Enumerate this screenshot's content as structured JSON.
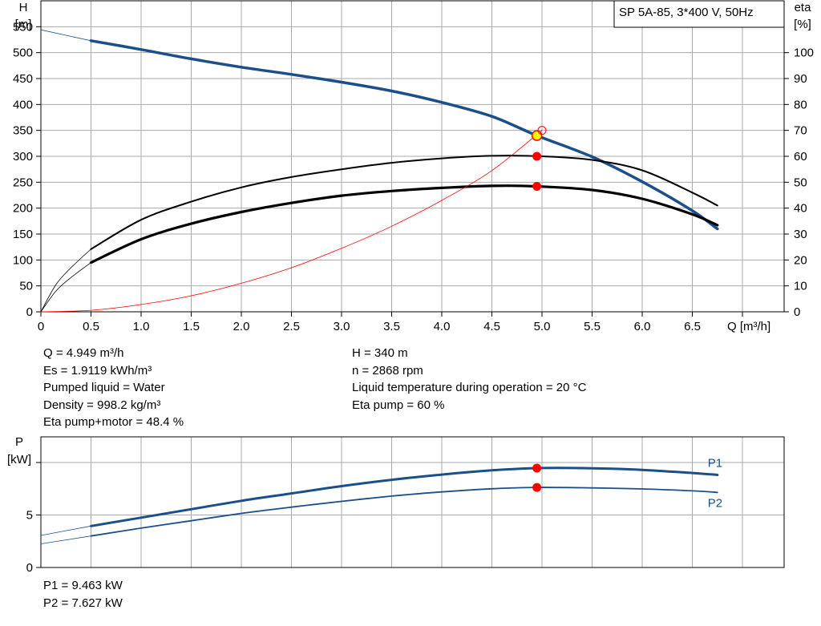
{
  "pump_label": "SP 5A-85, 3*400 V, 50Hz",
  "colors": {
    "head": "#1a4f8a",
    "eta": "#000000",
    "eta_sys": "#ff0000",
    "marker": "#ff0000",
    "dp_marker": "#ffff00",
    "grid": "#aaaaaa"
  },
  "chart_data": [
    {
      "type": "line",
      "ylabel_left": [
        "H",
        "[m]"
      ],
      "ylabel_right": [
        "eta",
        "[%]"
      ],
      "xlabel": "Q [m³/h]",
      "xlim": [
        0,
        7
      ],
      "ylim_left": [
        0,
        600
      ],
      "ylim_right": [
        0,
        120
      ],
      "xticks": [
        "0",
        "0.5",
        "1.0",
        "1.5",
        "2.0",
        "2.5",
        "3.0",
        "3.5",
        "4.0",
        "4.5",
        "5.0",
        "5.5",
        "6.0",
        "6.5"
      ],
      "xtick_values": [
        0,
        0.5,
        1.0,
        1.5,
        2.0,
        2.5,
        3.0,
        3.5,
        4.0,
        4.5,
        5.0,
        5.5,
        6.0,
        6.5
      ],
      "yticks_left": [
        "0",
        "50",
        "100",
        "150",
        "200",
        "250",
        "300",
        "350",
        "400",
        "450",
        "500",
        "550"
      ],
      "ytick_values_left": [
        0,
        50,
        100,
        150,
        200,
        250,
        300,
        350,
        400,
        450,
        500,
        550
      ],
      "yticks_right": [
        "0",
        "10",
        "20",
        "30",
        "40",
        "50",
        "60",
        "70",
        "80",
        "90",
        "100"
      ],
      "ytick_values_right": [
        0,
        10,
        20,
        30,
        40,
        50,
        60,
        70,
        80,
        90,
        100
      ],
      "series": [
        {
          "axis": "left",
          "width": 3.5,
          "x": [
            0.5,
            1.0,
            1.5,
            2.0,
            2.5,
            3.0,
            3.5,
            4.0,
            4.5,
            4.949,
            5.5,
            6.0,
            6.5,
            6.75
          ],
          "values": [
            523,
            506,
            488,
            472,
            458,
            443,
            426,
            404,
            377,
            340,
            299,
            251,
            195,
            160
          ]
        },
        {
          "axis": "left",
          "width": 0.8,
          "x": [
            0,
            0.5
          ],
          "values": [
            544,
            523
          ]
        },
        {
          "axis": "right",
          "width": 2,
          "x": [
            0.5,
            1.0,
            1.5,
            2.0,
            2.5,
            3.0,
            3.5,
            4.0,
            4.5,
            5.0,
            5.5,
            6.0,
            6.5,
            6.75
          ],
          "values": [
            24.2,
            35.5,
            42.5,
            48.0,
            52.0,
            55.0,
            57.5,
            59.2,
            60.2,
            60.0,
            58.6,
            54.6,
            46.0,
            41.0
          ]
        },
        {
          "axis": "right",
          "width": 3.2,
          "x": [
            0.5,
            1.0,
            1.5,
            2.0,
            2.5,
            3.0,
            3.5,
            4.0,
            4.5,
            4.949,
            5.5,
            6.0,
            6.5,
            6.75
          ],
          "values": [
            19.0,
            28.0,
            34.0,
            38.5,
            42.0,
            44.8,
            46.6,
            47.8,
            48.6,
            48.4,
            47.0,
            43.6,
            37.6,
            33.4
          ]
        },
        {
          "axis": "right",
          "width": 0.8,
          "x": [
            0,
            0.15,
            0.3,
            0.5
          ],
          "values": [
            0,
            10.5,
            17.0,
            24.2
          ]
        },
        {
          "axis": "right",
          "width": 0.8,
          "x": [
            0,
            0.15,
            0.3,
            0.5
          ],
          "values": [
            0,
            8.0,
            13.2,
            19.0
          ]
        },
        {
          "axis": "right",
          "width": 0.8,
          "color": "eta_sys",
          "x": [
            0,
            0.5,
            1.0,
            1.5,
            2.0,
            2.5,
            3.0,
            3.5,
            4.0,
            4.5,
            5.0
          ],
          "values": [
            0,
            0.6,
            2.8,
            6.2,
            11.0,
            17.0,
            24.5,
            33.0,
            43.0,
            54.5,
            70
          ]
        }
      ],
      "markers": [
        {
          "axis": "left",
          "x": 4.949,
          "y": 340,
          "kind": "duty"
        },
        {
          "axis": "right",
          "x": 4.949,
          "y": 60,
          "kind": "dot"
        },
        {
          "axis": "right",
          "x": 4.949,
          "y": 48.4,
          "kind": "dot"
        },
        {
          "axis": "right",
          "x": 5.0,
          "y": 70,
          "kind": "ring"
        }
      ]
    },
    {
      "type": "line",
      "ylabel": [
        "P",
        "[kW]"
      ],
      "xlim": [
        0,
        7
      ],
      "ylim": [
        0,
        10
      ],
      "yticks": [
        "0",
        "5"
      ],
      "ytick_values": [
        0,
        5
      ],
      "series": [
        {
          "name": "P1",
          "width": 3,
          "x": [
            0.5,
            1.0,
            1.5,
            2.0,
            2.5,
            3.0,
            3.5,
            4.0,
            4.5,
            4.949,
            5.5,
            6.0,
            6.5,
            6.75
          ],
          "values": [
            3.95,
            4.75,
            5.55,
            6.35,
            7.05,
            7.75,
            8.35,
            8.85,
            9.25,
            9.463,
            9.45,
            9.3,
            9.0,
            8.82
          ]
        },
        {
          "name": "P2",
          "width": 1.8,
          "x": [
            0.5,
            1.0,
            1.5,
            2.0,
            2.5,
            3.0,
            3.5,
            4.0,
            4.5,
            4.949,
            5.5,
            6.0,
            6.5,
            6.75
          ],
          "values": [
            3.0,
            3.75,
            4.45,
            5.15,
            5.75,
            6.3,
            6.8,
            7.2,
            7.5,
            7.627,
            7.58,
            7.48,
            7.3,
            7.15
          ]
        },
        {
          "width": 0.8,
          "x": [
            0,
            0.5
          ],
          "values": [
            3.05,
            3.95
          ]
        },
        {
          "width": 0.8,
          "x": [
            0,
            0.5
          ],
          "values": [
            2.25,
            3.0
          ]
        }
      ],
      "markers": [
        {
          "x": 4.949,
          "y": 9.463,
          "kind": "dot"
        },
        {
          "x": 4.949,
          "y": 7.627,
          "kind": "dot"
        }
      ]
    }
  ],
  "duty_left": [
    "Q = 4.949 m³/h",
    "Es = 1.9119 kWh/m³",
    "Pumped liquid = Water",
    "Density = 998.2 kg/m³",
    "Eta pump+motor = 48.4 %"
  ],
  "duty_right": [
    "H = 340 m",
    "n = 2868 rpm",
    "Liquid temperature during operation = 20 °C",
    "Eta pump = 60 %"
  ],
  "power_results": [
    "P1 = 9.463 kW",
    "P2 = 7.627 kW"
  ]
}
